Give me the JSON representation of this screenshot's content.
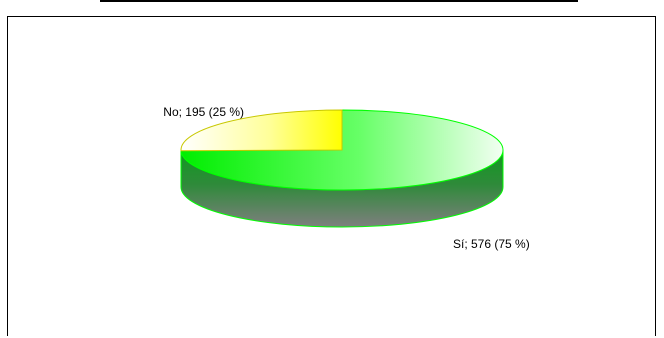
{
  "chart_data": {
    "type": "pie",
    "title": "",
    "labels": [
      "Sí",
      "No"
    ],
    "values": [
      576,
      195
    ],
    "percentages": [
      75,
      25
    ],
    "data_labels": [
      "Sí; 576 (75 %)",
      "No; 195 (25 %)"
    ],
    "colors": [
      "#00ff00",
      "#ffff00"
    ],
    "style": "3d",
    "legend": "none"
  }
}
